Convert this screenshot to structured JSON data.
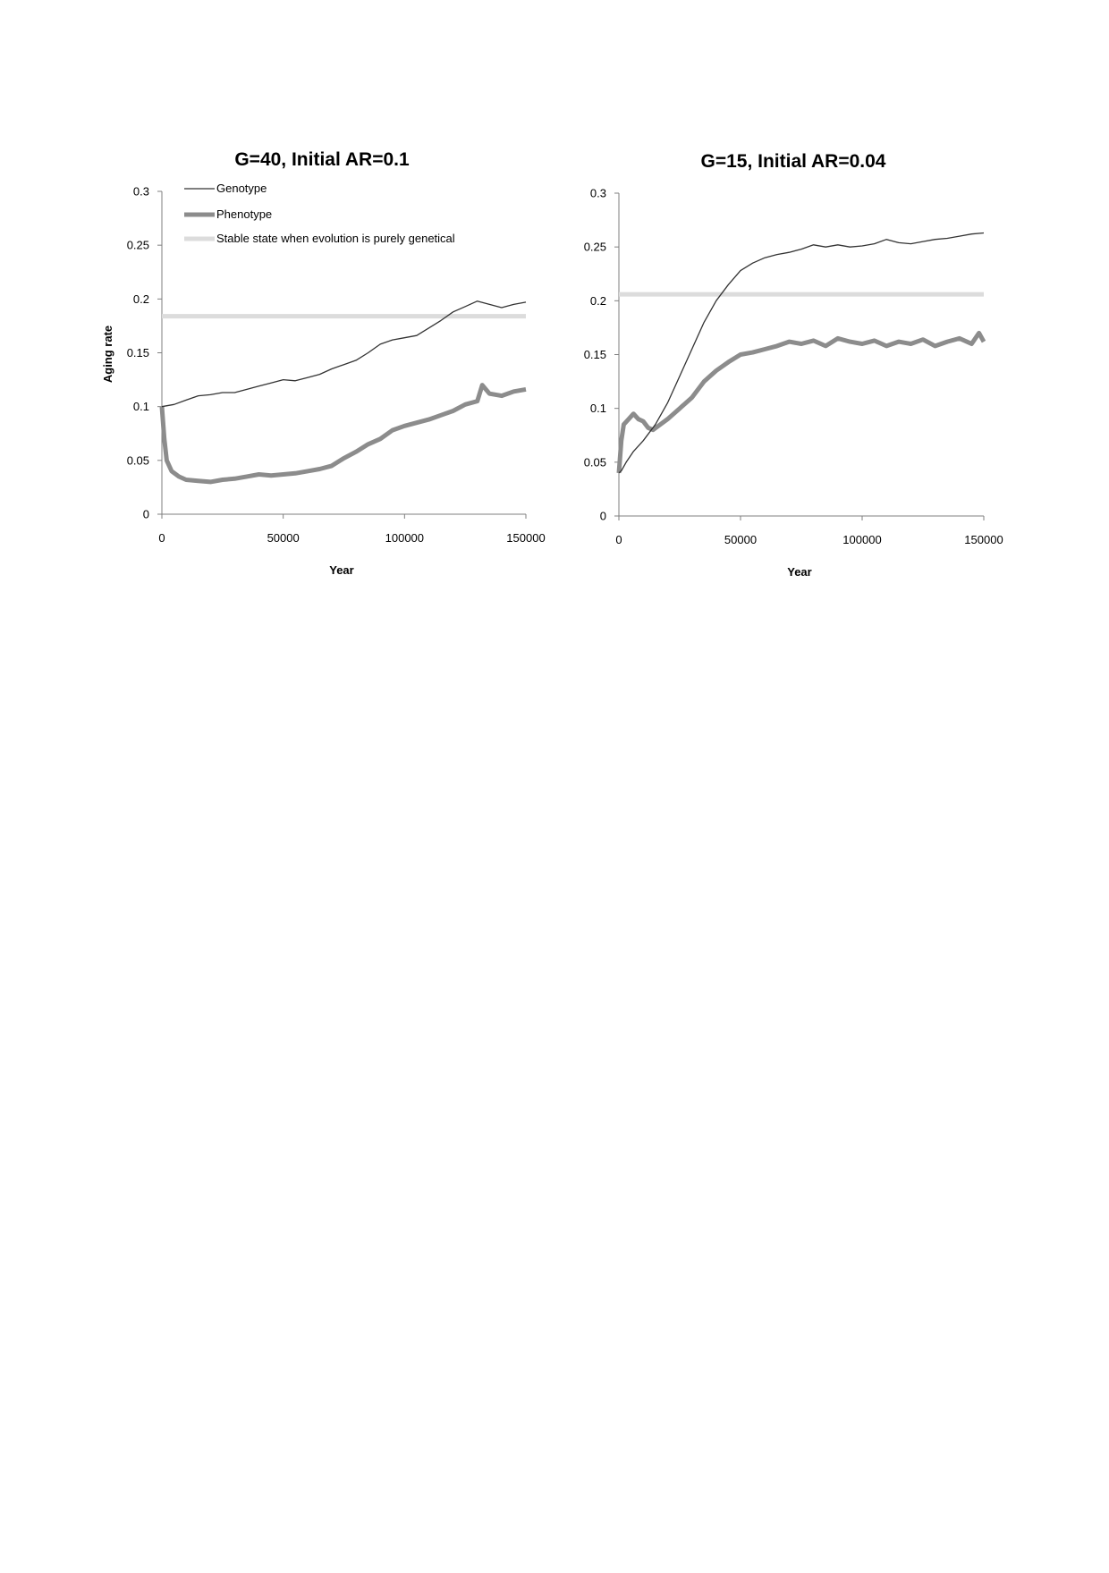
{
  "chart_data": [
    {
      "type": "line",
      "title": "G=40, Initial AR=0.1",
      "xlabel": "Year",
      "ylabel": "Aging rate",
      "xlim": [
        0,
        150000
      ],
      "ylim": [
        0,
        0.3
      ],
      "x_ticks": [
        0,
        50000,
        100000,
        150000
      ],
      "y_ticks": [
        0,
        0.05,
        0.1,
        0.15,
        0.2,
        0.25,
        0.3
      ],
      "x_tick_labels": [
        "0",
        "50000",
        "100000",
        "150000"
      ],
      "y_tick_labels": [
        "0",
        "0.05",
        "0.1",
        "0.15",
        "0.2",
        "0.25",
        "0.3"
      ],
      "grid": false,
      "legend_position": "top-left",
      "series": [
        {
          "name": "Genotype",
          "color": "#333333",
          "style": "thin",
          "x": [
            0,
            5000,
            10000,
            15000,
            20000,
            25000,
            30000,
            35000,
            40000,
            45000,
            50000,
            55000,
            60000,
            65000,
            70000,
            75000,
            80000,
            85000,
            90000,
            95000,
            100000,
            105000,
            110000,
            115000,
            120000,
            125000,
            130000,
            135000,
            140000,
            145000,
            150000
          ],
          "values": [
            0.1,
            0.102,
            0.106,
            0.11,
            0.111,
            0.113,
            0.113,
            0.116,
            0.119,
            0.122,
            0.125,
            0.124,
            0.127,
            0.13,
            0.135,
            0.139,
            0.143,
            0.15,
            0.158,
            0.162,
            0.164,
            0.166,
            0.173,
            0.18,
            0.188,
            0.193,
            0.198,
            0.195,
            0.192,
            0.195,
            0.197
          ]
        },
        {
          "name": "Phenotype",
          "color": "#8c8c8c",
          "style": "thick",
          "x": [
            0,
            1000,
            2000,
            4000,
            7000,
            10000,
            15000,
            20000,
            25000,
            30000,
            35000,
            40000,
            45000,
            50000,
            55000,
            60000,
            65000,
            70000,
            75000,
            80000,
            85000,
            90000,
            95000,
            100000,
            105000,
            110000,
            115000,
            120000,
            125000,
            130000,
            132000,
            135000,
            140000,
            145000,
            150000
          ],
          "values": [
            0.1,
            0.07,
            0.05,
            0.04,
            0.035,
            0.032,
            0.031,
            0.03,
            0.032,
            0.033,
            0.035,
            0.037,
            0.036,
            0.037,
            0.038,
            0.04,
            0.042,
            0.045,
            0.052,
            0.058,
            0.065,
            0.07,
            0.078,
            0.082,
            0.085,
            0.088,
            0.092,
            0.096,
            0.102,
            0.105,
            0.12,
            0.112,
            0.11,
            0.114,
            0.116
          ]
        },
        {
          "name": "Stable state when evolution is purely genetical",
          "color": "#dcdcdc",
          "style": "thick",
          "x": [
            0,
            150000
          ],
          "values": [
            0.184,
            0.184
          ]
        }
      ]
    },
    {
      "type": "line",
      "title": "G=15, Initial AR=0.04",
      "xlabel": "Year",
      "ylabel": "",
      "xlim": [
        0,
        150000
      ],
      "ylim": [
        0,
        0.3
      ],
      "x_ticks": [
        0,
        50000,
        100000,
        150000
      ],
      "y_ticks": [
        0,
        0.05,
        0.1,
        0.15,
        0.2,
        0.25,
        0.3
      ],
      "x_tick_labels": [
        "0",
        "50000",
        "100000",
        "150000"
      ],
      "y_tick_labels": [
        "0",
        "0.05",
        "0.1",
        "0.15",
        "0.2",
        "0.25",
        "0.3"
      ],
      "grid": false,
      "series": [
        {
          "name": "Genotype",
          "color": "#333333",
          "style": "thin",
          "x": [
            0,
            1000,
            3000,
            6000,
            10000,
            15000,
            20000,
            25000,
            30000,
            35000,
            40000,
            45000,
            50000,
            55000,
            60000,
            65000,
            70000,
            75000,
            80000,
            85000,
            90000,
            95000,
            100000,
            105000,
            110000,
            115000,
            120000,
            125000,
            130000,
            135000,
            140000,
            145000,
            150000
          ],
          "values": [
            0.04,
            0.042,
            0.05,
            0.06,
            0.07,
            0.085,
            0.105,
            0.13,
            0.155,
            0.18,
            0.2,
            0.215,
            0.228,
            0.235,
            0.24,
            0.243,
            0.245,
            0.248,
            0.252,
            0.25,
            0.252,
            0.25,
            0.251,
            0.253,
            0.257,
            0.254,
            0.253,
            0.255,
            0.257,
            0.258,
            0.26,
            0.262,
            0.263
          ]
        },
        {
          "name": "Phenotype",
          "color": "#8c8c8c",
          "style": "thick",
          "x": [
            0,
            1000,
            2000,
            4000,
            6000,
            8000,
            10000,
            12000,
            14000,
            17000,
            20000,
            25000,
            30000,
            35000,
            40000,
            45000,
            50000,
            55000,
            60000,
            65000,
            70000,
            75000,
            80000,
            85000,
            90000,
            95000,
            100000,
            105000,
            110000,
            115000,
            120000,
            125000,
            130000,
            135000,
            140000,
            145000,
            148000,
            150000
          ],
          "values": [
            0.04,
            0.07,
            0.085,
            0.09,
            0.095,
            0.09,
            0.088,
            0.082,
            0.08,
            0.085,
            0.09,
            0.1,
            0.11,
            0.125,
            0.135,
            0.143,
            0.15,
            0.152,
            0.155,
            0.158,
            0.162,
            0.16,
            0.163,
            0.158,
            0.165,
            0.162,
            0.16,
            0.163,
            0.158,
            0.162,
            0.16,
            0.164,
            0.158,
            0.162,
            0.165,
            0.16,
            0.17,
            0.162
          ]
        },
        {
          "name": "Stable state when evolution is purely genetical",
          "color": "#dcdcdc",
          "style": "thick",
          "x": [
            0,
            150000
          ],
          "values": [
            0.206,
            0.206
          ]
        }
      ]
    }
  ]
}
